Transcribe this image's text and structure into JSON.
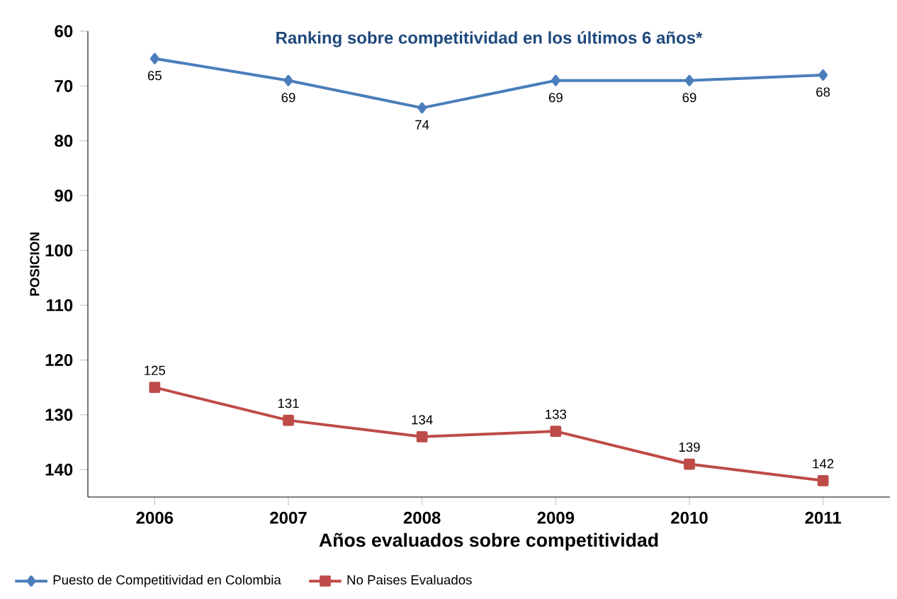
{
  "chart_data": {
    "type": "line",
    "title": "Ranking sobre competitividad en los últimos 6 años*",
    "xlabel": "Años evaluados sobre competitividad",
    "ylabel": "POSICION",
    "categories": [
      "2006",
      "2007",
      "2008",
      "2009",
      "2010",
      "2011"
    ],
    "series": [
      {
        "name": "Puesto de Competitividad en Colombia",
        "color": "#4a7ebb",
        "marker": "diamond",
        "values": [
          65,
          69,
          74,
          69,
          69,
          68
        ]
      },
      {
        "name": "No Paises Evaluados",
        "color": "#be4b48",
        "marker": "square",
        "values": [
          125,
          131,
          134,
          133,
          139,
          142
        ]
      }
    ],
    "ylim": [
      145,
      60
    ],
    "yticks": [
      60,
      70,
      80,
      90,
      100,
      110,
      120,
      130,
      140
    ],
    "data_labels": true,
    "grid": false,
    "legend": "bottom left",
    "line_style": "solid"
  }
}
